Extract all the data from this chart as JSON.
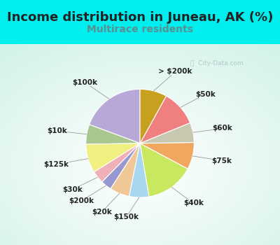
{
  "title": "Income distribution in Juneau, AK (%)",
  "subtitle": "Multirace residents",
  "background_color": "#00EEEE",
  "chart_bg_color": "#e8f5ee",
  "title_color": "#222222",
  "subtitle_color": "#5a9090",
  "watermark_color": "#a8c0c8",
  "label_color": "#222222",
  "segments": [
    {
      "label": "$100k",
      "value": 18.0,
      "color": "#b8a8d8"
    },
    {
      "label": "$10k",
      "value": 5.5,
      "color": "#a8c890"
    },
    {
      "label": "$125k",
      "value": 8.0,
      "color": "#f0f080"
    },
    {
      "label": "$30k",
      "value": 3.5,
      "color": "#f0b0b8"
    },
    {
      "label": "$200k",
      "value": 3.0,
      "color": "#9898d0"
    },
    {
      "label": "$20k",
      "value": 5.5,
      "color": "#f0c898"
    },
    {
      "label": "$150k",
      "value": 5.5,
      "color": "#a8d8f0"
    },
    {
      "label": "$40k",
      "value": 13.5,
      "color": "#c8e860"
    },
    {
      "label": "$75k",
      "value": 7.5,
      "color": "#f0a860"
    },
    {
      "label": "$60k",
      "value": 5.5,
      "color": "#c8c8b0"
    },
    {
      "label": "$50k",
      "value": 10.0,
      "color": "#f08080"
    },
    {
      "label": "> $200k",
      "value": 7.5,
      "color": "#c8a020"
    }
  ],
  "label_fontsize": 7.5,
  "title_fontsize": 13,
  "subtitle_fontsize": 10
}
